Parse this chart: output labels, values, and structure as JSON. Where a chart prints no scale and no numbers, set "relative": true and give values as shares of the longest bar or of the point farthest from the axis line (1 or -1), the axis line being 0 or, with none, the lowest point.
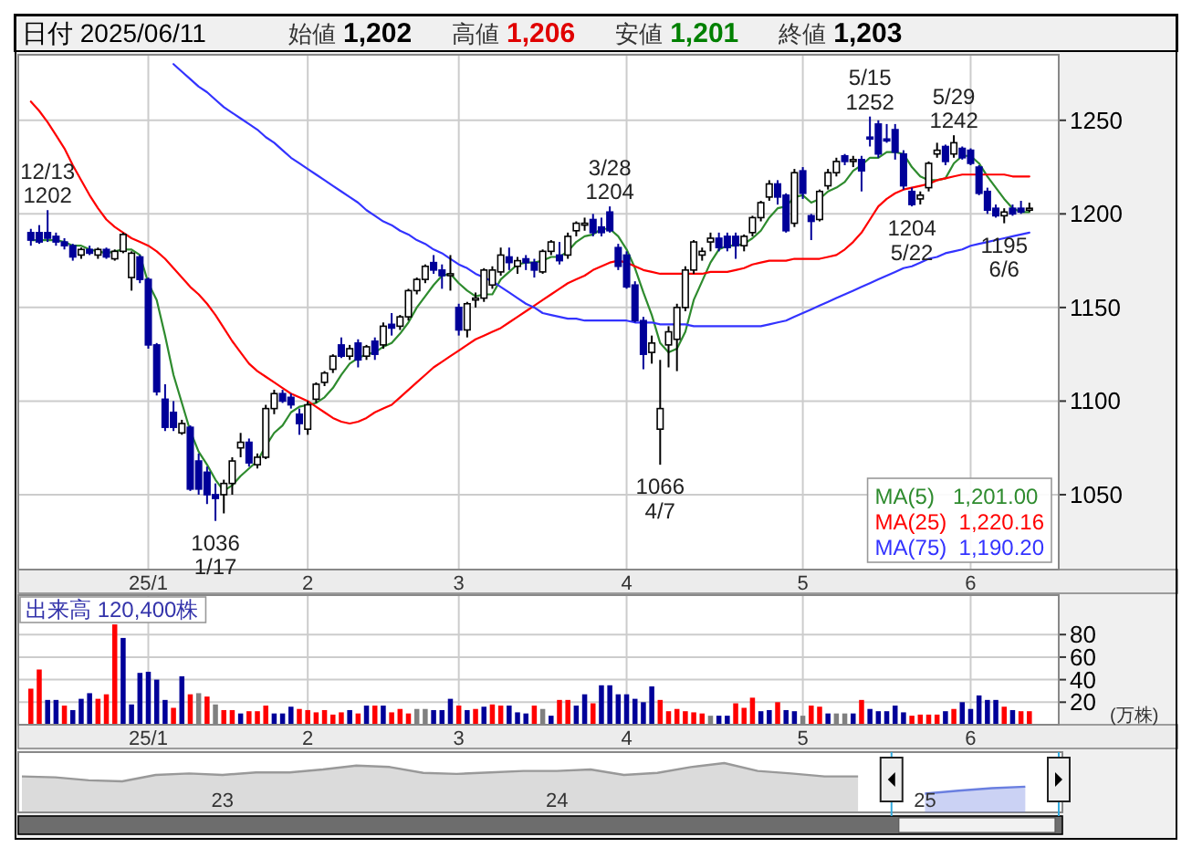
{
  "chart_data": [
    {
      "type": "candlestick",
      "title": "日付 2025/06/11",
      "annotations": [
        "始値",
        "1,202",
        "高値",
        "1,206",
        "安値",
        "1,201",
        "終値",
        "1,203",
        {
          "text": "12/13\n1202",
          "y": 1202
        },
        {
          "text": "1036\n1/17",
          "y": 1036
        },
        {
          "text": "3/28\n1204",
          "y": 1204
        },
        {
          "text": "1066\n4/7",
          "y": 1066
        },
        {
          "text": "5/15\n1252",
          "y": 1252
        },
        {
          "text": "1204\n5/22",
          "y": 1204
        },
        {
          "text": "5/29\n1242",
          "y": 1242
        },
        {
          "text": "1195\n6/6",
          "y": 1195
        }
      ],
      "categories": [
        null,
        null,
        null,
        null,
        null,
        null,
        null,
        null,
        null,
        null,
        null,
        null,
        null,
        null,
        "25/1",
        null,
        null,
        null,
        null,
        null,
        null,
        null,
        null,
        null,
        null,
        null,
        null,
        null,
        null,
        null,
        null,
        null,
        null,
        "2",
        null,
        null,
        null,
        null,
        null,
        null,
        null,
        null,
        null,
        null,
        null,
        null,
        null,
        null,
        null,
        null,
        null,
        "3",
        null,
        null,
        null,
        null,
        null,
        null,
        null,
        null,
        null,
        null,
        null,
        null,
        null,
        null,
        null,
        null,
        null,
        null,
        null,
        "4",
        null,
        null,
        null,
        null,
        null,
        null,
        null,
        null,
        null,
        null,
        null,
        null,
        null,
        null,
        null,
        null,
        null,
        null,
        null,
        null,
        "5",
        null,
        null,
        null,
        null,
        null,
        null,
        null,
        null,
        null,
        null,
        null,
        null,
        null,
        null,
        null,
        null,
        null,
        null,
        null,
        "6",
        null,
        null,
        null,
        null,
        null,
        null,
        null
      ],
      "ohlc": [
        [
          1190,
          1192,
          1183,
          1186
        ],
        [
          1190,
          1194,
          1184,
          1185
        ],
        [
          1190,
          1202,
          1185,
          1187
        ],
        [
          1188,
          1190,
          1183,
          1185
        ],
        [
          1185,
          1187,
          1181,
          1183
        ],
        [
          1183,
          1184,
          1175,
          1177
        ],
        [
          1178,
          1182,
          1176,
          1181
        ],
        [
          1181,
          1183,
          1178,
          1179
        ],
        [
          1178,
          1182,
          1176,
          1181
        ],
        [
          1181,
          1182,
          1176,
          1177
        ],
        [
          1176,
          1181,
          1175,
          1180
        ],
        [
          1180,
          1190,
          1179,
          1189
        ],
        [
          1166,
          1180,
          1159,
          1179
        ],
        [
          1177,
          1178,
          1163,
          1165
        ],
        [
          1165,
          1166,
          1128,
          1130
        ],
        [
          1130,
          1131,
          1103,
          1105
        ],
        [
          1101,
          1109,
          1084,
          1086
        ],
        [
          1094,
          1100,
          1084,
          1086
        ],
        [
          1083,
          1090,
          1082,
          1088
        ],
        [
          1086,
          1087,
          1052,
          1053
        ],
        [
          1068,
          1072,
          1050,
          1053
        ],
        [
          1062,
          1065,
          1045,
          1050
        ],
        [
          1050,
          1056,
          1036,
          1048
        ],
        [
          1050,
          1058,
          1040,
          1056
        ],
        [
          1056,
          1070,
          1050,
          1068
        ],
        [
          1075,
          1083,
          1070,
          1078
        ],
        [
          1078,
          1080,
          1065,
          1067
        ],
        [
          1066,
          1072,
          1064,
          1070
        ],
        [
          1070,
          1098,
          1069,
          1096
        ],
        [
          1096,
          1106,
          1093,
          1104
        ],
        [
          1104,
          1106,
          1099,
          1100
        ],
        [
          1102,
          1104,
          1096,
          1098
        ],
        [
          1093,
          1096,
          1082,
          1088
        ],
        [
          1085,
          1100,
          1082,
          1098
        ],
        [
          1101,
          1110,
          1099,
          1109
        ],
        [
          1110,
          1116,
          1108,
          1115
        ],
        [
          1117,
          1125,
          1115,
          1124
        ],
        [
          1130,
          1134,
          1123,
          1124
        ],
        [
          1124,
          1130,
          1122,
          1128
        ],
        [
          1131,
          1133,
          1118,
          1122
        ],
        [
          1124,
          1130,
          1122,
          1129
        ],
        [
          1132,
          1134,
          1122,
          1125
        ],
        [
          1130,
          1142,
          1128,
          1140
        ],
        [
          1141,
          1147,
          1135,
          1139
        ],
        [
          1140,
          1146,
          1138,
          1145
        ],
        [
          1145,
          1160,
          1143,
          1159
        ],
        [
          1159,
          1166,
          1157,
          1165
        ],
        [
          1165,
          1173,
          1163,
          1172
        ],
        [
          1174,
          1178,
          1168,
          1170
        ],
        [
          1170,
          1173,
          1160,
          1167
        ],
        [
          1168,
          1178,
          1159,
          1168
        ],
        [
          1150,
          1152,
          1135,
          1138
        ],
        [
          1138,
          1153,
          1134,
          1152
        ],
        [
          1154,
          1158,
          1150,
          1155
        ],
        [
          1155,
          1171,
          1153,
          1170
        ],
        [
          1162,
          1172,
          1160,
          1170
        ],
        [
          1169,
          1182,
          1167,
          1178
        ],
        [
          1177,
          1182,
          1170,
          1174
        ],
        [
          1172,
          1177,
          1168,
          1175
        ],
        [
          1176,
          1178,
          1170,
          1174
        ],
        [
          1174,
          1176,
          1166,
          1170
        ],
        [
          1169,
          1181,
          1168,
          1180
        ],
        [
          1180,
          1186,
          1178,
          1185
        ],
        [
          1178,
          1185,
          1173,
          1175
        ],
        [
          1178,
          1190,
          1176,
          1188
        ],
        [
          1191,
          1196,
          1188,
          1195
        ],
        [
          1194,
          1198,
          1191,
          1195
        ],
        [
          1197,
          1200,
          1188,
          1190
        ],
        [
          1193,
          1198,
          1188,
          1190
        ],
        [
          1201,
          1204,
          1190,
          1191
        ],
        [
          1182,
          1184,
          1170,
          1172
        ],
        [
          1178,
          1180,
          1160,
          1161
        ],
        [
          1162,
          1164,
          1142,
          1143
        ],
        [
          1143,
          1145,
          1117,
          1125
        ],
        [
          1126,
          1135,
          1120,
          1131
        ],
        [
          1085,
          1122,
          1066,
          1096
        ],
        [
          1130,
          1140,
          1118,
          1137
        ],
        [
          1133,
          1152,
          1116,
          1150
        ],
        [
          1150,
          1172,
          1148,
          1170
        ],
        [
          1170,
          1186,
          1168,
          1185
        ],
        [
          1178,
          1182,
          1175,
          1180
        ],
        [
          1185,
          1190,
          1180,
          1187
        ],
        [
          1187,
          1190,
          1180,
          1182
        ],
        [
          1188,
          1190,
          1180,
          1182
        ],
        [
          1188,
          1190,
          1176,
          1183
        ],
        [
          1183,
          1189,
          1180,
          1188
        ],
        [
          1190,
          1199,
          1188,
          1198
        ],
        [
          1198,
          1207,
          1196,
          1206
        ],
        [
          1209,
          1218,
          1207,
          1216
        ],
        [
          1216,
          1218,
          1205,
          1209
        ],
        [
          1210,
          1211,
          1190,
          1191
        ],
        [
          1195,
          1224,
          1193,
          1222
        ],
        [
          1223,
          1225,
          1208,
          1211
        ],
        [
          1199,
          1200,
          1186,
          1196
        ],
        [
          1197,
          1213,
          1196,
          1212
        ],
        [
          1215,
          1224,
          1213,
          1222
        ],
        [
          1222,
          1230,
          1220,
          1228
        ],
        [
          1231,
          1232,
          1226,
          1228
        ],
        [
          1228,
          1231,
          1225,
          1229
        ],
        [
          1229,
          1231,
          1212,
          1223
        ],
        [
          1241,
          1252,
          1236,
          1240
        ],
        [
          1248,
          1250,
          1230,
          1232
        ],
        [
          1240,
          1248,
          1238,
          1239
        ],
        [
          1245,
          1248,
          1229,
          1233
        ],
        [
          1232,
          1234,
          1213,
          1215
        ],
        [
          1212,
          1214,
          1204,
          1205
        ],
        [
          1208,
          1212,
          1205,
          1210
        ],
        [
          1214,
          1228,
          1212,
          1227
        ],
        [
          1232,
          1238,
          1230,
          1234
        ],
        [
          1236,
          1237,
          1226,
          1228
        ],
        [
          1232,
          1242,
          1230,
          1238
        ],
        [
          1235,
          1236,
          1229,
          1230
        ],
        [
          1234,
          1235,
          1226,
          1227
        ],
        [
          1225,
          1226,
          1210,
          1211
        ],
        [
          1212,
          1214,
          1200,
          1202
        ],
        [
          1203,
          1205,
          1198,
          1199
        ],
        [
          1199,
          1203,
          1195,
          1201
        ],
        [
          1203,
          1205,
          1199,
          1200
        ],
        [
          1203,
          1207,
          1200,
          1201
        ],
        [
          1202,
          1206,
          1201,
          1203
        ]
      ],
      "series": [
        {
          "name": "MA(5)   1,201.00",
          "type": "line",
          "color": "#2e8b2e",
          "values": [
            1186,
            1186,
            1186,
            1186,
            1185,
            1183,
            1183,
            1181,
            1180,
            1179,
            1180,
            1181,
            1181,
            1178,
            1163,
            1154,
            1135,
            1114,
            1099,
            1084,
            1073,
            1066,
            1058,
            1052,
            1055,
            1060,
            1064,
            1068,
            1076,
            1083,
            1087,
            1094,
            1097,
            1098,
            1099,
            1102,
            1107,
            1114,
            1120,
            1123,
            1125,
            1126,
            1129,
            1131,
            1136,
            1142,
            1150,
            1156,
            1162,
            1167,
            1168,
            1163,
            1159,
            1156,
            1157,
            1157,
            1165,
            1169,
            1173,
            1174,
            1174,
            1175,
            1177,
            1177,
            1180,
            1185,
            1188,
            1189,
            1192,
            1192,
            1188,
            1181,
            1171,
            1158,
            1146,
            1131,
            1126,
            1128,
            1137,
            1154,
            1164,
            1174,
            1181,
            1183,
            1183,
            1184,
            1187,
            1191,
            1198,
            1203,
            1204,
            1209,
            1210,
            1206,
            1208,
            1212,
            1214,
            1217,
            1223,
            1226,
            1230,
            1230,
            1233,
            1233,
            1232,
            1225,
            1220,
            1218,
            1218,
            1219,
            1227,
            1231,
            1231,
            1227,
            1220,
            1214,
            1208,
            1203,
            1201,
            1201
          ]
        },
        {
          "name": "MA(25)  1,220.16",
          "type": "line",
          "color": "#ff0000",
          "values": [
            1260,
            1255,
            1249,
            1242,
            1235,
            1226,
            1218,
            1210,
            1203,
            1197,
            1193,
            1190,
            1187,
            1185,
            1183,
            1180,
            1176,
            1171,
            1166,
            1161,
            1157,
            1152,
            1146,
            1139,
            1132,
            1126,
            1120,
            1116,
            1113,
            1110,
            1107,
            1104,
            1102,
            1100,
            1097,
            1094,
            1091,
            1089,
            1088,
            1089,
            1091,
            1094,
            1096,
            1098,
            1102,
            1106,
            1110,
            1114,
            1118,
            1121,
            1124,
            1127,
            1130,
            1133,
            1135,
            1137,
            1139,
            1142,
            1145,
            1148,
            1151,
            1154,
            1157,
            1160,
            1163,
            1165,
            1167,
            1170,
            1172,
            1174,
            1175,
            1174,
            1172,
            1170,
            1169,
            1168,
            1168,
            1168,
            1168,
            1168,
            1168,
            1169,
            1169,
            1169,
            1170,
            1171,
            1173,
            1174,
            1175,
            1175,
            1175,
            1176,
            1176,
            1176,
            1176,
            1177,
            1178,
            1181,
            1185,
            1190,
            1197,
            1204,
            1208,
            1211,
            1213,
            1214,
            1215,
            1216,
            1218,
            1219,
            1220,
            1221,
            1221,
            1221,
            1221,
            1221,
            1221,
            1220,
            1220,
            1220
          ]
        },
        {
          "name": "MA(75)  1,190.20",
          "type": "line",
          "color": "#3333ff",
          "values": [
            null,
            null,
            null,
            null,
            null,
            null,
            null,
            null,
            null,
            null,
            null,
            null,
            null,
            null,
            null,
            null,
            null,
            1280,
            1276,
            1272,
            1268,
            1265,
            1261,
            1257,
            1254,
            1251,
            1248,
            1245,
            1241,
            1238,
            1234,
            1230,
            1227,
            1224,
            1221,
            1218,
            1215,
            1212,
            1209,
            1206,
            1202,
            1199,
            1196,
            1194,
            1191,
            1189,
            1186,
            1184,
            1181,
            1179,
            1176,
            1173,
            1171,
            1168,
            1166,
            1164,
            1161,
            1158,
            1155,
            1152,
            1150,
            1147,
            1146,
            1145,
            1144,
            1144,
            1143,
            1143,
            1143,
            1143,
            1143,
            1143,
            1142,
            1142,
            1142,
            1141,
            1141,
            1141,
            1141,
            1140,
            1140,
            1140,
            1140,
            1140,
            1140,
            1140,
            1140,
            1140,
            1141,
            1142,
            1143,
            1145,
            1147,
            1149,
            1151,
            1153,
            1155,
            1157,
            1159,
            1161,
            1163,
            1165,
            1167,
            1169,
            1171,
            1172,
            1174,
            1176,
            1177,
            1179,
            1180,
            1181,
            1183,
            1184,
            1185,
            1186,
            1187,
            1188,
            1189,
            1190
          ]
        }
      ],
      "ylim": [
        1010,
        1285
      ],
      "yticks": [
        1050,
        1100,
        1150,
        1200,
        1250
      ],
      "grid": true,
      "legend": "bottom right"
    },
    {
      "type": "bar",
      "title": "出来高 120,400株",
      "ylabel": "(万株)",
      "categories": [
        null,
        null,
        null,
        null,
        null,
        null,
        null,
        null,
        null,
        null,
        null,
        null,
        null,
        null,
        "25/1",
        null,
        null,
        null,
        null,
        null,
        null,
        null,
        null,
        null,
        null,
        null,
        null,
        null,
        null,
        null,
        null,
        null,
        null,
        "2",
        null,
        null,
        null,
        null,
        null,
        null,
        null,
        null,
        null,
        null,
        null,
        null,
        null,
        null,
        null,
        null,
        null,
        "3",
        null,
        null,
        null,
        null,
        null,
        null,
        null,
        null,
        null,
        null,
        null,
        null,
        null,
        null,
        null,
        null,
        null,
        null,
        null,
        "4",
        null,
        null,
        null,
        null,
        null,
        null,
        null,
        null,
        null,
        null,
        null,
        null,
        null,
        null,
        null,
        null,
        null,
        null,
        null,
        null,
        "5",
        null,
        null,
        null,
        null,
        null,
        null,
        null,
        null,
        null,
        null,
        null,
        null,
        null,
        null,
        null,
        null,
        null,
        null,
        null,
        "6",
        null,
        null,
        null,
        null,
        null,
        null,
        null
      ],
      "values": [
        32,
        49,
        22,
        22,
        17,
        13,
        23,
        28,
        23,
        27,
        89,
        77,
        18,
        46,
        47,
        40,
        22,
        15,
        43,
        27,
        28,
        25,
        18,
        13,
        13,
        10,
        12,
        12,
        17,
        10,
        10,
        16,
        14,
        13,
        11,
        13,
        9,
        11,
        13,
        10,
        17,
        17,
        17,
        11,
        14,
        10,
        14,
        14,
        13,
        13,
        23,
        17,
        13,
        14,
        16,
        18,
        17,
        17,
        11,
        10,
        17,
        14,
        8,
        22,
        22,
        17,
        27,
        19,
        35,
        35,
        27,
        27,
        23,
        20,
        34,
        22,
        12,
        14,
        12,
        11,
        10,
        8,
        8,
        8,
        19,
        15,
        24,
        12,
        13,
        20,
        13,
        12,
        8,
        17,
        16,
        10,
        10,
        10,
        10,
        22,
        14,
        12,
        12,
        17,
        11,
        8,
        9,
        9,
        9,
        12,
        14,
        20,
        14,
        26,
        22,
        22,
        16,
        13,
        12,
        12
      ],
      "colors": [
        "#ff0000",
        "#ff0000",
        "#000099",
        "#000099",
        "#ff0000",
        "#000099",
        "#000099",
        "#000099",
        "#ff0000",
        "#ff0000",
        "#ff0000",
        "#000099",
        "#000099",
        "#000099",
        "#000099",
        "#000099",
        "#000099",
        "#ff0000",
        "#000099",
        "#ff0000",
        "#808080",
        "#ff0000",
        "#808080",
        "#ff0000",
        "#ff0000",
        "#000099",
        "#ff0000",
        "#ff0000",
        "#ff0000",
        "#000099",
        "#000099",
        "#000099",
        "#ff0000",
        "#ff0000",
        "#ff0000",
        "#ff0000",
        "#ff0000",
        "#ff0000",
        "#000099",
        "#ff0000",
        "#000099",
        "#ff0000",
        "#000099",
        "#ff0000",
        "#ff0000",
        "#ff0000",
        "#808080",
        "#808080",
        "#000099",
        "#000099",
        "#000099",
        "#ff0000",
        "#000099",
        "#ff0000",
        "#000099",
        "#ff0000",
        "#ff0000",
        "#000099",
        "#000099",
        "#000099",
        "#ff0000",
        "#808080",
        "#000099",
        "#ff0000",
        "#ff0000",
        "#000099",
        "#000099",
        "#ff0000",
        "#000099",
        "#000099",
        "#000099",
        "#000099",
        "#000099",
        "#000099",
        "#000099",
        "#ff0000",
        "#ff0000",
        "#ff0000",
        "#ff0000",
        "#ff0000",
        "#ff0000",
        "#808080",
        "#000099",
        "#000099",
        "#ff0000",
        "#ff0000",
        "#ff0000",
        "#000099",
        "#000099",
        "#ff0000",
        "#000099",
        "#000099",
        "#808080",
        "#ff0000",
        "#ff0000",
        "#000099",
        "#808080",
        "#808080",
        "#000099",
        "#ff0000",
        "#000099",
        "#000099",
        "#000099",
        "#000099",
        "#000099",
        "#ff0000",
        "#ff0000",
        "#ff0000",
        "#ff0000",
        "#000099",
        "#ff0000",
        "#000099",
        "#000099",
        "#000099",
        "#000099",
        "#000099",
        "#ff0000",
        "#000099",
        "#ff0000",
        "#ff0000"
      ],
      "ylim": [
        0,
        115
      ],
      "yticks": [
        20,
        40,
        60,
        80
      ],
      "grid": true
    },
    {
      "type": "area",
      "relative": true,
      "categories": [
        null,
        null,
        null,
        null,
        null,
        null,
        "23",
        null,
        null,
        null,
        null,
        null,
        null,
        null,
        null,
        null,
        "24",
        null,
        null,
        null,
        null,
        null,
        null,
        null,
        null,
        null,
        null,
        "25",
        null,
        null,
        null,
        null
      ],
      "series": [
        {
          "color": "#999999",
          "values": [
            0.73,
            0.71,
            0.65,
            0.63,
            0.76,
            0.79,
            0.76,
            0.81,
            0.81,
            0.87,
            0.95,
            0.92,
            0.8,
            0.78,
            0.81,
            0.84,
            0.84,
            0.87,
            0.76,
            0.8,
            0.92,
            1.0,
            0.84,
            0.79,
            0.73,
            0.73,
            null,
            null,
            null,
            null,
            null,
            null
          ]
        },
        {
          "color": "#6a7fe0",
          "values": [
            null,
            null,
            null,
            null,
            null,
            null,
            null,
            null,
            null,
            null,
            null,
            null,
            null,
            null,
            null,
            null,
            null,
            null,
            null,
            null,
            null,
            null,
            null,
            null,
            null,
            null,
            null,
            0.38,
            0.44,
            0.49,
            0.52,
            null
          ]
        }
      ]
    }
  ]
}
